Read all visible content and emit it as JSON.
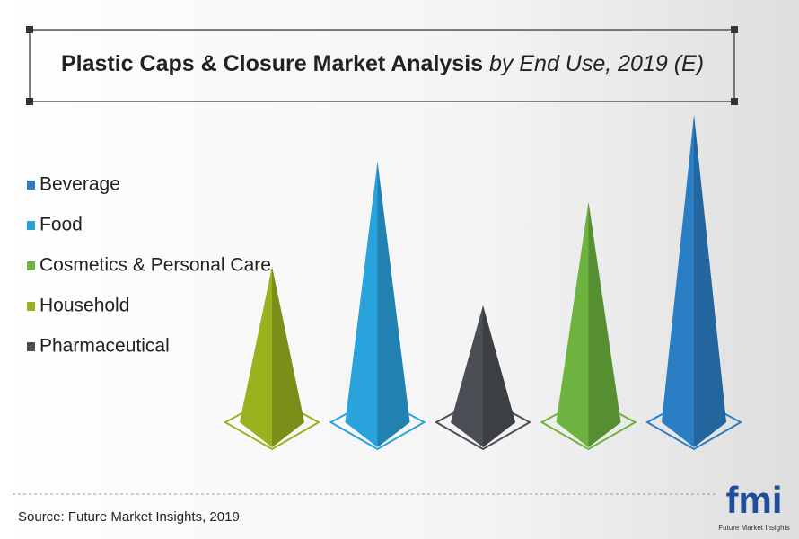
{
  "chart_data": {
    "type": "pyramid",
    "title": "Plastic Caps & Closure Market Analysis",
    "subtitle": "by End Use, 2019 (E)",
    "series": [
      {
        "name": "Beverage",
        "color": "#2a7fc4",
        "values": [
          342
        ]
      },
      {
        "name": "Food",
        "color": "#29a3dc",
        "values": [
          290
        ]
      },
      {
        "name": "Cosmetics & Personal Care",
        "color": "#6cb33f",
        "values": [
          245
        ]
      },
      {
        "name": "Household",
        "color": "#9bb21f",
        "values": [
          173
        ]
      },
      {
        "name": "Pharmaceutical",
        "color": "#4b4f55",
        "values": [
          130
        ]
      }
    ],
    "source": "Source: Future Market Insights, 2019",
    "logo": "fmi",
    "logo_caption": "Future Market Insights"
  }
}
